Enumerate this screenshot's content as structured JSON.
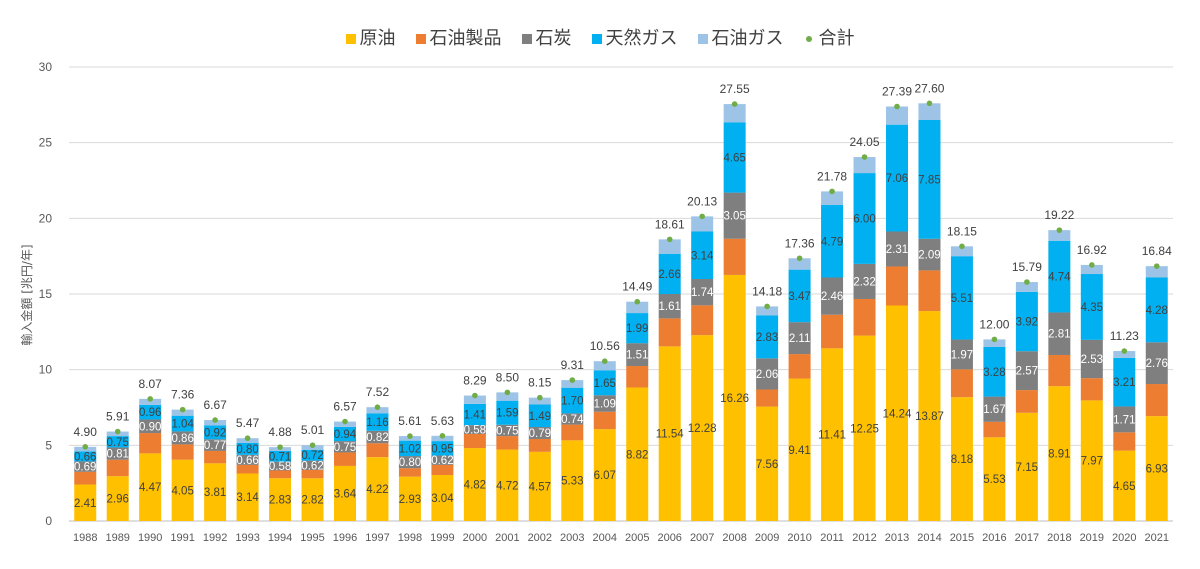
{
  "chart_data": {
    "type": "bar",
    "stacked": true,
    "ylabel": "輸入金額 [兆円/年]",
    "ylim": [
      0,
      30
    ],
    "yticks": [
      0,
      5,
      10,
      15,
      20,
      25,
      30
    ],
    "grid": true,
    "legend_position": "top",
    "categories": [
      "1988",
      "1989",
      "1990",
      "1991",
      "1992",
      "1993",
      "1994",
      "1995",
      "1996",
      "1997",
      "1998",
      "1999",
      "2000",
      "2001",
      "2002",
      "2003",
      "2004",
      "2005",
      "2006",
      "2007",
      "2008",
      "2009",
      "2010",
      "2011",
      "2012",
      "2013",
      "2014",
      "2015",
      "2016",
      "2017",
      "2018",
      "2019",
      "2020",
      "2021"
    ],
    "series": [
      {
        "name": "原油",
        "color": "#FFC000",
        "data_labels": true,
        "values": [
          2.41,
          2.96,
          4.47,
          4.05,
          3.81,
          3.14,
          2.83,
          2.82,
          3.64,
          4.22,
          2.93,
          3.04,
          4.82,
          4.72,
          4.57,
          5.33,
          6.07,
          8.82,
          11.54,
          12.28,
          16.26,
          7.56,
          9.41,
          11.41,
          12.25,
          14.24,
          13.87,
          8.18,
          5.53,
          7.15,
          8.91,
          7.97,
          4.65,
          6.93
        ]
      },
      {
        "name": "石油製品",
        "color": "#ED7D31",
        "data_labels": false,
        "values": [
          0.84,
          1.09,
          1.34,
          1.01,
          0.82,
          0.57,
          0.51,
          0.55,
          0.89,
          0.92,
          0.56,
          0.67,
          0.93,
          0.89,
          0.85,
          1.04,
          1.15,
          1.42,
          1.85,
          1.97,
          2.39,
          1.13,
          1.62,
          2.22,
          2.42,
          2.58,
          2.69,
          1.84,
          1.02,
          1.5,
          2.06,
          1.47,
          1.21,
          2.12
        ]
      },
      {
        "name": "石炭",
        "color": "#7F7F7F",
        "data_labels": true,
        "values": [
          0.69,
          0.81,
          0.9,
          0.86,
          0.77,
          0.66,
          0.58,
          0.62,
          0.75,
          0.82,
          0.8,
          0.62,
          0.58,
          0.75,
          0.79,
          0.74,
          1.09,
          1.51,
          1.61,
          1.74,
          3.05,
          2.06,
          2.11,
          2.46,
          2.32,
          2.31,
          2.09,
          1.97,
          1.67,
          2.57,
          2.81,
          2.53,
          1.71,
          2.76
        ]
      },
      {
        "name": "天然ガス",
        "color": "#00B0F0",
        "data_labels": true,
        "values": [
          0.66,
          0.75,
          0.96,
          1.04,
          0.92,
          0.8,
          0.71,
          0.72,
          0.94,
          1.16,
          1.02,
          0.95,
          1.41,
          1.59,
          1.49,
          1.7,
          1.65,
          1.99,
          2.66,
          3.14,
          4.65,
          2.83,
          3.47,
          4.79,
          6.0,
          7.06,
          7.85,
          5.51,
          3.28,
          3.92,
          4.74,
          4.35,
          3.21,
          4.28
        ]
      },
      {
        "name": "石油ガス",
        "color": "#9DC3E6",
        "data_labels": false,
        "values": [
          0.3,
          0.3,
          0.4,
          0.4,
          0.35,
          0.3,
          0.25,
          0.3,
          0.35,
          0.4,
          0.3,
          0.35,
          0.55,
          0.55,
          0.45,
          0.5,
          0.6,
          0.75,
          0.95,
          1.0,
          1.2,
          0.6,
          0.75,
          0.9,
          1.06,
          1.2,
          1.1,
          0.65,
          0.5,
          0.65,
          0.7,
          0.6,
          0.45,
          0.75
        ]
      }
    ],
    "total": {
      "name": "合計",
      "color": "#70AD47",
      "marker": "dot",
      "data_labels": true,
      "values": [
        4.9,
        5.91,
        8.07,
        7.36,
        6.67,
        5.47,
        4.88,
        5.01,
        6.57,
        7.52,
        5.61,
        5.63,
        8.29,
        8.5,
        8.15,
        9.31,
        10.56,
        14.49,
        18.61,
        20.13,
        27.55,
        14.18,
        17.36,
        21.78,
        24.05,
        27.39,
        27.6,
        18.15,
        12.0,
        15.79,
        19.22,
        16.92,
        11.23,
        16.84
      ]
    }
  }
}
